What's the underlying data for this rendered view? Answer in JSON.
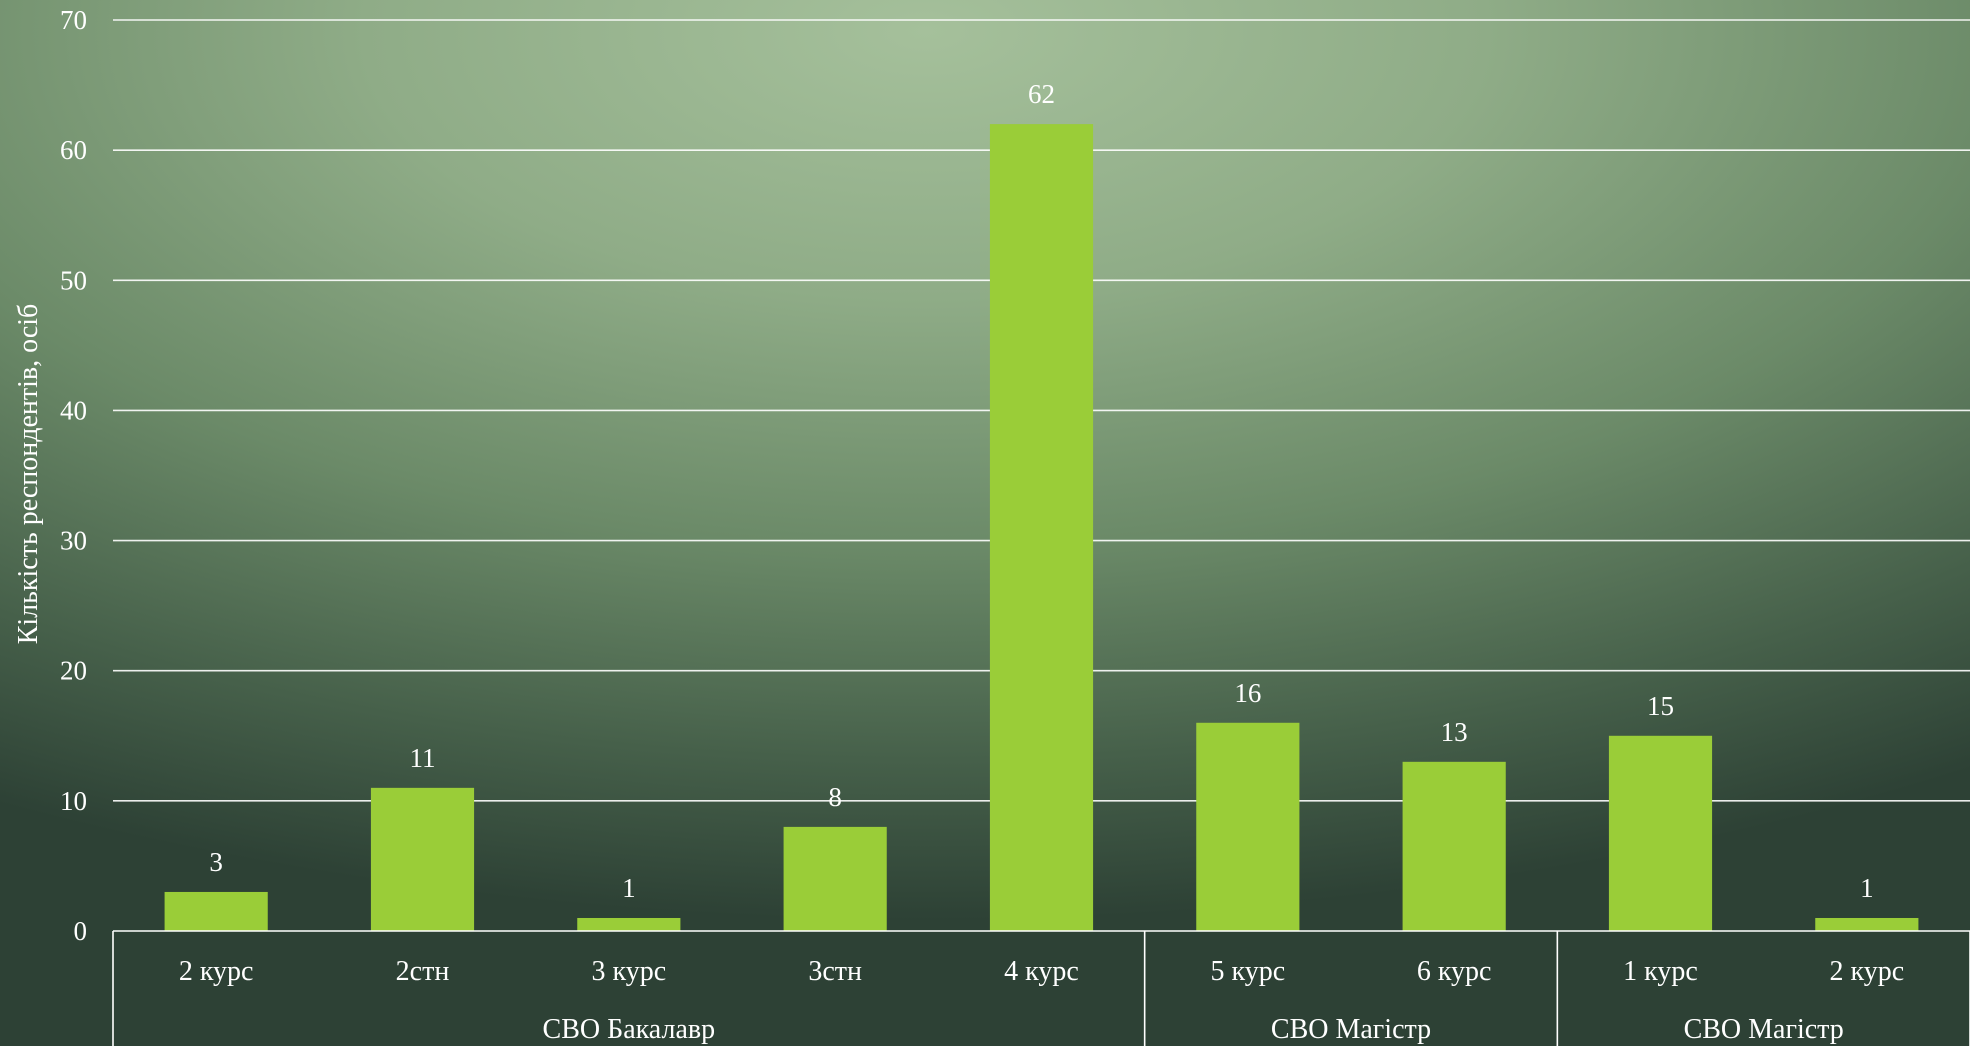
{
  "chart_data": {
    "type": "bar",
    "ylabel": "Кількість респондентів, осіб",
    "ylim": [
      0,
      70
    ],
    "yticks": [
      0,
      10,
      20,
      30,
      40,
      50,
      60,
      70
    ],
    "grid": true,
    "bar_color": "#9acd38",
    "categories": [
      "2 курс",
      "2стн",
      "3 курс",
      "3стн",
      "4 курс",
      "5 курс",
      "6 курс",
      "1 курс",
      "2 курс"
    ],
    "values": [
      3,
      11,
      1,
      8,
      62,
      16,
      13,
      15,
      1
    ],
    "groups": [
      {
        "label": "СВО Бакалавр",
        "count": 5
      },
      {
        "label": "СВО Магістр",
        "count": 2
      },
      {
        "label": "СВО Магістр",
        "count": 2
      }
    ]
  }
}
